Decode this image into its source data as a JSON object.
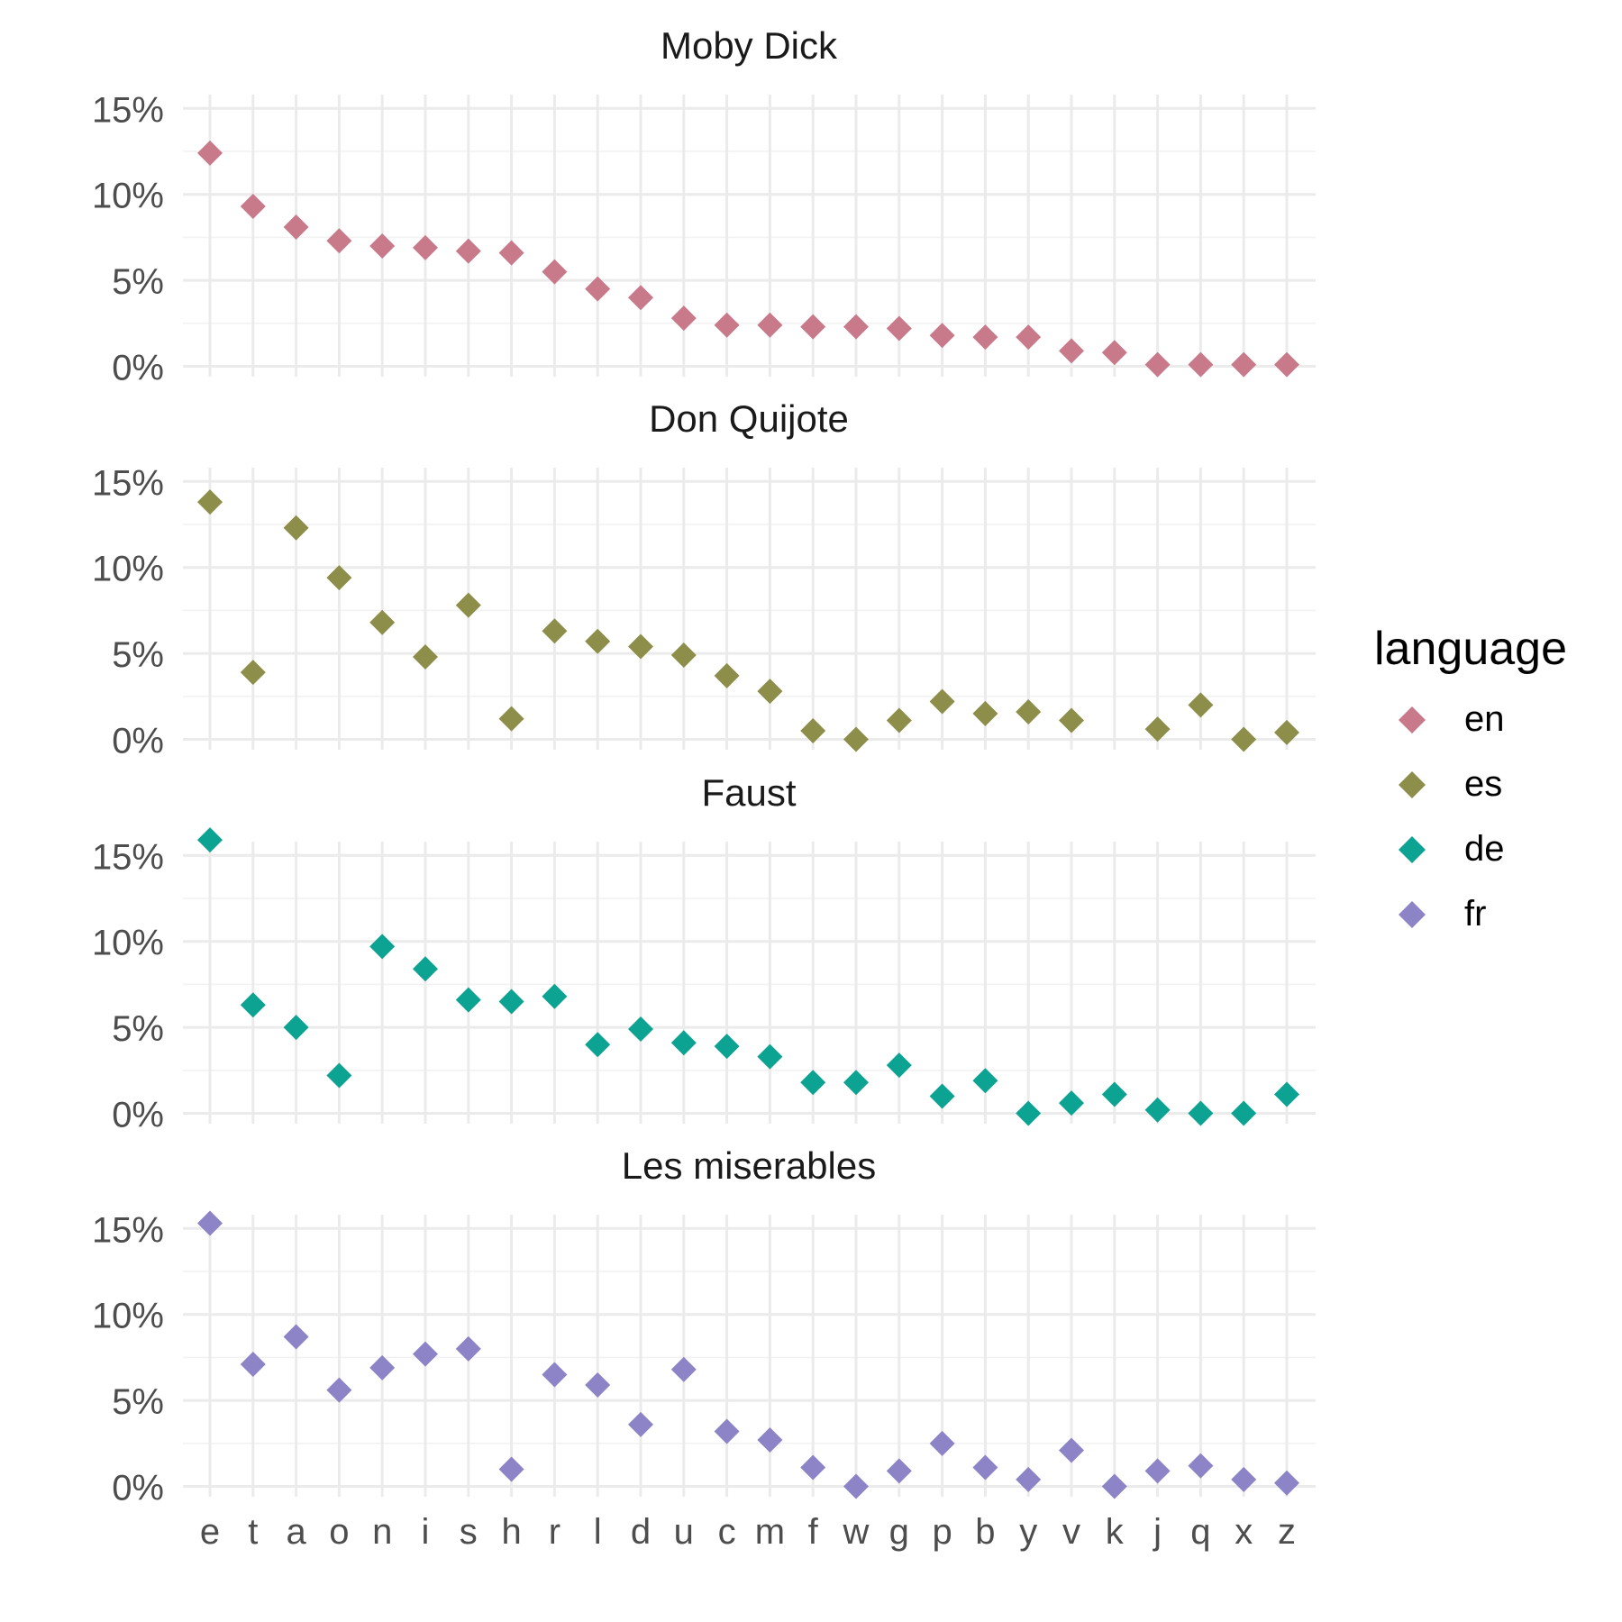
{
  "chart_data": {
    "type": "scatter",
    "categories": [
      "e",
      "t",
      "a",
      "o",
      "n",
      "i",
      "s",
      "h",
      "r",
      "l",
      "d",
      "u",
      "c",
      "m",
      "f",
      "w",
      "g",
      "p",
      "b",
      "y",
      "v",
      "k",
      "j",
      "q",
      "x",
      "z"
    ],
    "y_ticks": [
      "0%",
      "5%",
      "10%",
      "15%"
    ],
    "y_tick_values": [
      0,
      5,
      10,
      15
    ],
    "ylim": [
      -0.6,
      15.8
    ],
    "grid": true,
    "marker": "diamond",
    "legend": {
      "title": "language",
      "position": "right",
      "entries": [
        {
          "label": "en",
          "color": "#C97A8A"
        },
        {
          "label": "es",
          "color": "#8D8E4A"
        },
        {
          "label": "de",
          "color": "#0DA393"
        },
        {
          "label": "fr",
          "color": "#8D84C7"
        }
      ]
    },
    "panels": [
      {
        "title": "Moby Dick",
        "language": "en",
        "values": [
          12.4,
          9.3,
          8.1,
          7.3,
          7.0,
          6.9,
          6.7,
          6.6,
          5.5,
          4.5,
          4.0,
          2.8,
          2.4,
          2.4,
          2.3,
          2.3,
          2.2,
          1.8,
          1.7,
          1.7,
          0.9,
          0.8,
          0.1,
          0.1,
          0.1,
          0.1
        ]
      },
      {
        "title": "Don Quijote",
        "language": "es",
        "values": [
          13.8,
          3.9,
          12.3,
          9.4,
          6.8,
          4.8,
          7.8,
          1.2,
          6.3,
          5.7,
          5.4,
          4.9,
          3.7,
          2.8,
          0.5,
          0.0,
          1.1,
          2.2,
          1.5,
          1.6,
          1.1,
          null,
          0.6,
          2.0,
          0.0,
          0.4
        ]
      },
      {
        "title": "Faust",
        "language": "de",
        "values": [
          15.9,
          6.3,
          5.0,
          2.2,
          9.7,
          8.4,
          6.6,
          6.5,
          6.8,
          4.0,
          4.9,
          4.1,
          3.9,
          3.3,
          1.8,
          1.8,
          2.8,
          1.0,
          1.9,
          0.0,
          0.6,
          1.1,
          0.2,
          0.0,
          0.0,
          1.1
        ]
      },
      {
        "title": "Les miserables",
        "language": "fr",
        "values": [
          15.3,
          7.1,
          8.7,
          5.6,
          6.9,
          7.7,
          8.0,
          1.0,
          6.5,
          5.9,
          3.6,
          6.8,
          3.2,
          2.7,
          1.1,
          0.0,
          0.9,
          2.5,
          1.1,
          0.4,
          2.1,
          0.0,
          0.9,
          1.2,
          0.4,
          0.2
        ]
      }
    ]
  }
}
